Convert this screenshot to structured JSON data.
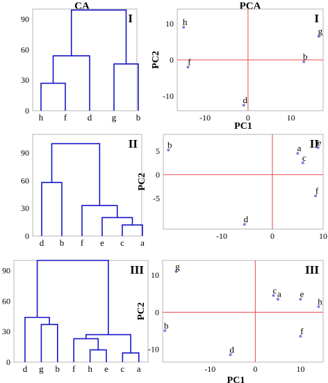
{
  "column_titles": [
    "CA",
    "PCA"
  ],
  "colors": {
    "dendrogram": "#1515c8",
    "points": "#8080e0",
    "zero_lines": "#e84848",
    "frame": "#b4b4b4"
  },
  "chart_data": [
    {
      "type": "dendrogram",
      "panel": "I",
      "column": "CA",
      "ylim": [
        0,
        100
      ],
      "yticks": [
        0,
        30,
        60,
        90
      ],
      "leaves": [
        "h",
        "f",
        "d",
        "g",
        "b"
      ],
      "merges": [
        {
          "children": [
            "h",
            "f"
          ],
          "height": 27
        },
        {
          "children": [
            "g",
            "b"
          ],
          "height": 46
        },
        {
          "children": [
            "h-f",
            "d"
          ],
          "height": 54
        },
        {
          "children": [
            "h-f-d",
            "g-b"
          ],
          "height": 99
        }
      ]
    },
    {
      "type": "scatter",
      "panel": "I",
      "column": "PCA",
      "xlabel": "PC1",
      "ylabel": "PC2",
      "xlim": [
        -16.5,
        17.5
      ],
      "ylim": [
        -14,
        14
      ],
      "xticks": [
        -10,
        0,
        10
      ],
      "yticks": [
        -10,
        0,
        10
      ],
      "points": [
        {
          "label": "h",
          "x": -15,
          "y": 9
        },
        {
          "label": "g",
          "x": 16.5,
          "y": 6.5
        },
        {
          "label": "b",
          "x": 13,
          "y": -0.5
        },
        {
          "label": "f",
          "x": -14,
          "y": -2
        },
        {
          "label": "d",
          "x": -1,
          "y": -12.5
        }
      ]
    },
    {
      "type": "dendrogram",
      "panel": "II",
      "column": "CA",
      "ylim": [
        0,
        110
      ],
      "yticks": [
        0,
        30,
        60,
        90
      ],
      "leaves": [
        "d",
        "b",
        "f",
        "e",
        "c",
        "a"
      ],
      "merges": [
        {
          "children": [
            "c",
            "a"
          ],
          "height": 12
        },
        {
          "children": [
            "e",
            "c-a"
          ],
          "height": 20
        },
        {
          "children": [
            "f",
            "e-c-a"
          ],
          "height": 33
        },
        {
          "children": [
            "d",
            "b"
          ],
          "height": 58
        },
        {
          "children": [
            "d-b",
            "f-e-c-a"
          ],
          "height": 100
        }
      ]
    },
    {
      "type": "scatter",
      "panel": "II",
      "column": "PCA",
      "xlabel": "PC1",
      "ylabel": "PC2",
      "xlim": [
        -21.5,
        10
      ],
      "ylim": [
        -11.5,
        8.5
      ],
      "xticks": [
        -10,
        0,
        10
      ],
      "yticks": [
        -5,
        0,
        5
      ],
      "points": [
        {
          "label": "b",
          "x": -20.5,
          "y": 5.2
        },
        {
          "label": "a",
          "x": 5,
          "y": 4.5
        },
        {
          "label": "e",
          "x": 9,
          "y": 5.7
        },
        {
          "label": "c",
          "x": 6,
          "y": 2.5
        },
        {
          "label": "f",
          "x": 8.5,
          "y": -4.5
        },
        {
          "label": "d",
          "x": -5.5,
          "y": -10.5
        }
      ]
    },
    {
      "type": "dendrogram",
      "panel": "III",
      "column": "CA",
      "ylim": [
        0,
        100
      ],
      "yticks": [
        0,
        30,
        60,
        90
      ],
      "leaves": [
        "d",
        "g",
        "b",
        "f",
        "h",
        "e",
        "c",
        "a"
      ],
      "merges": [
        {
          "children": [
            "c",
            "a"
          ],
          "height": 9
        },
        {
          "children": [
            "h",
            "e"
          ],
          "height": 12
        },
        {
          "children": [
            "f",
            "h-e"
          ],
          "height": 23
        },
        {
          "children": [
            "f-h-e",
            "c-a"
          ],
          "height": 27
        },
        {
          "children": [
            "g",
            "b"
          ],
          "height": 37
        },
        {
          "children": [
            "d",
            "g-b"
          ],
          "height": 44
        },
        {
          "children": [
            "d-g-b",
            "f-h-e-c-a"
          ],
          "height": 100
        }
      ]
    },
    {
      "type": "scatter",
      "panel": "III",
      "column": "PCA",
      "xlabel": "PC1",
      "ylabel": "PC2",
      "xlim": [
        -20.5,
        15
      ],
      "ylim": [
        -13.5,
        14
      ],
      "xticks": [
        -10,
        0,
        10
      ],
      "yticks": [
        -10,
        0,
        10
      ],
      "points": [
        {
          "label": "g",
          "x": -17.5,
          "y": 11
        },
        {
          "label": "c",
          "x": 4,
          "y": 4.5
        },
        {
          "label": "a",
          "x": 5,
          "y": 3.5
        },
        {
          "label": "e",
          "x": 10,
          "y": 3.5
        },
        {
          "label": "h",
          "x": 14,
          "y": 1.5
        },
        {
          "label": "b",
          "x": -20,
          "y": -5
        },
        {
          "label": "f",
          "x": 10,
          "y": -6.5
        },
        {
          "label": "d",
          "x": -5.5,
          "y": -11.5
        }
      ]
    }
  ]
}
